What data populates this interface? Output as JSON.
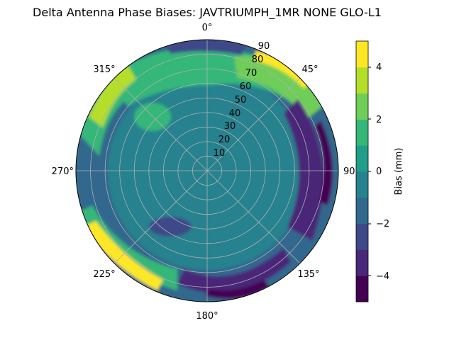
{
  "chart_data": {
    "type": "heatmap",
    "projection": "polar",
    "title": "Delta Antenna Phase Biases: JAVTRIUMPH_1MR  NONE GLO-L1",
    "colorbar_label": "Bias (mm)",
    "colorbar_range": [
      -5,
      5
    ],
    "colorbar_ticks": [
      "4",
      "2",
      "0",
      "−2",
      "−4"
    ],
    "colorbar_levels": [
      {
        "from": -5,
        "to": -4,
        "color": "#440154"
      },
      {
        "from": -4,
        "to": -3,
        "color": "#482878"
      },
      {
        "from": -3,
        "to": -2,
        "color": "#3e4989"
      },
      {
        "from": -2,
        "to": -1,
        "color": "#31688e"
      },
      {
        "from": -1,
        "to": 0,
        "color": "#26828e"
      },
      {
        "from": 0,
        "to": 1,
        "color": "#1f9e89"
      },
      {
        "from": 1,
        "to": 2,
        "color": "#35b779"
      },
      {
        "from": 2,
        "to": 3,
        "color": "#6ece58"
      },
      {
        "from": 3,
        "to": 4,
        "color": "#b5de2b"
      },
      {
        "from": 4,
        "to": 5,
        "color": "#fde725"
      }
    ],
    "azimuth_labels": [
      "0°",
      "45°",
      "90°",
      "135°",
      "180°",
      "225°",
      "270°",
      "315°"
    ],
    "radial_labels": [
      "10",
      "20",
      "30",
      "40",
      "50",
      "60",
      "70",
      "80",
      "90"
    ],
    "radial_range": [
      0,
      90
    ],
    "grid": true,
    "regions": [
      {
        "name": "outer-ring-base",
        "value": -1.5
      },
      {
        "name": "center-disk",
        "value": -0.5
      },
      {
        "name": "north-high-band",
        "value": 1.5
      },
      {
        "name": "north-low-edge",
        "value": -2.5
      },
      {
        "name": "northeast-high-lobe",
        "value": 2.5
      },
      {
        "name": "northeast-peak",
        "value": 4.5
      },
      {
        "name": "east-low-band",
        "value": -3.0
      },
      {
        "name": "east-minimum",
        "value": -4.5
      },
      {
        "name": "south-low-lobe",
        "value": -3.5
      },
      {
        "name": "south-minimum",
        "value": -4.5
      },
      {
        "name": "southwest-high-lobe",
        "value": 2.0
      },
      {
        "name": "southwest-peak",
        "value": 4.5
      },
      {
        "name": "west-high-band",
        "value": 2.0
      },
      {
        "name": "northwest-peak",
        "value": 4.0
      },
      {
        "name": "inner-low-patch",
        "value": -2.5
      },
      {
        "name": "inner-high-patch",
        "value": 1.5
      }
    ]
  }
}
